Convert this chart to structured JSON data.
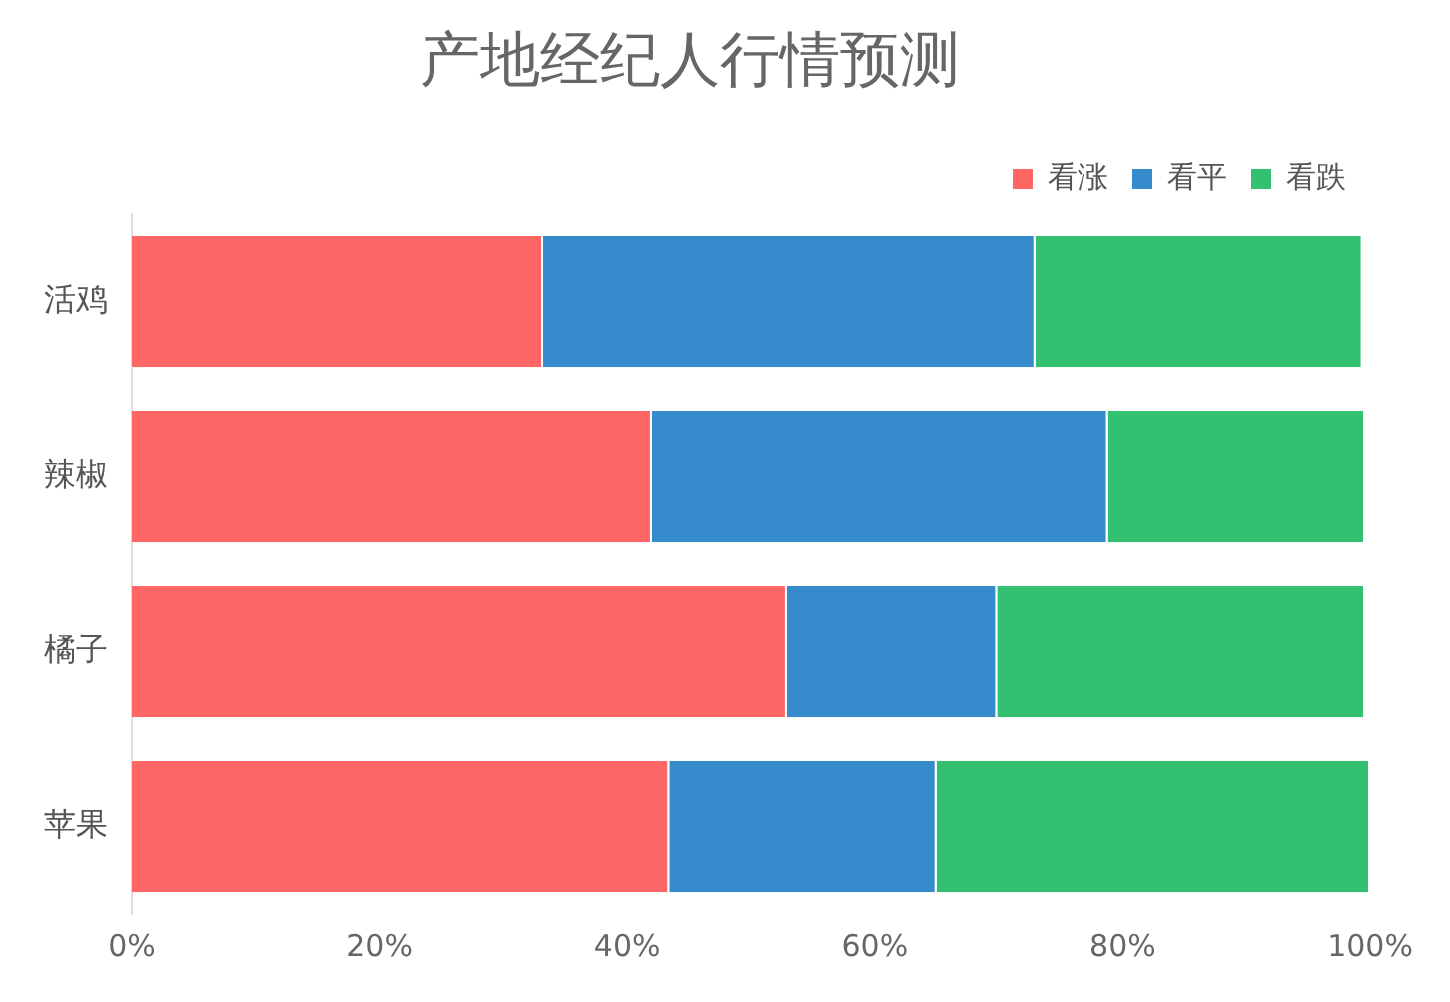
{
  "chart_data": {
    "type": "bar",
    "title": "产地经纪人行情预测",
    "orientation": "horizontal",
    "stacked": true,
    "categories": [
      "活鸡",
      "辣椒",
      "橘子",
      "苹果"
    ],
    "series": [
      {
        "name": "看涨",
        "color": "#ff6666",
        "values": [
          33.2,
          42.0,
          52.9,
          43.4
        ]
      },
      {
        "name": "看平",
        "color": "#358bcb",
        "values": [
          39.8,
          36.8,
          17.0,
          21.6
        ]
      },
      {
        "name": "看跌",
        "color": "#33c070",
        "values": [
          26.4,
          20.8,
          29.7,
          35.0
        ]
      }
    ],
    "xlim": [
      0,
      100
    ],
    "xticks": [
      {
        "value": 0,
        "label": "0%"
      },
      {
        "value": 20,
        "label": "20%"
      },
      {
        "value": 40,
        "label": "40%"
      },
      {
        "value": 60,
        "label": "60%"
      },
      {
        "value": 80,
        "label": "80%"
      },
      {
        "value": 100,
        "label": "100%"
      }
    ],
    "grid": false,
    "legend": "top right"
  }
}
